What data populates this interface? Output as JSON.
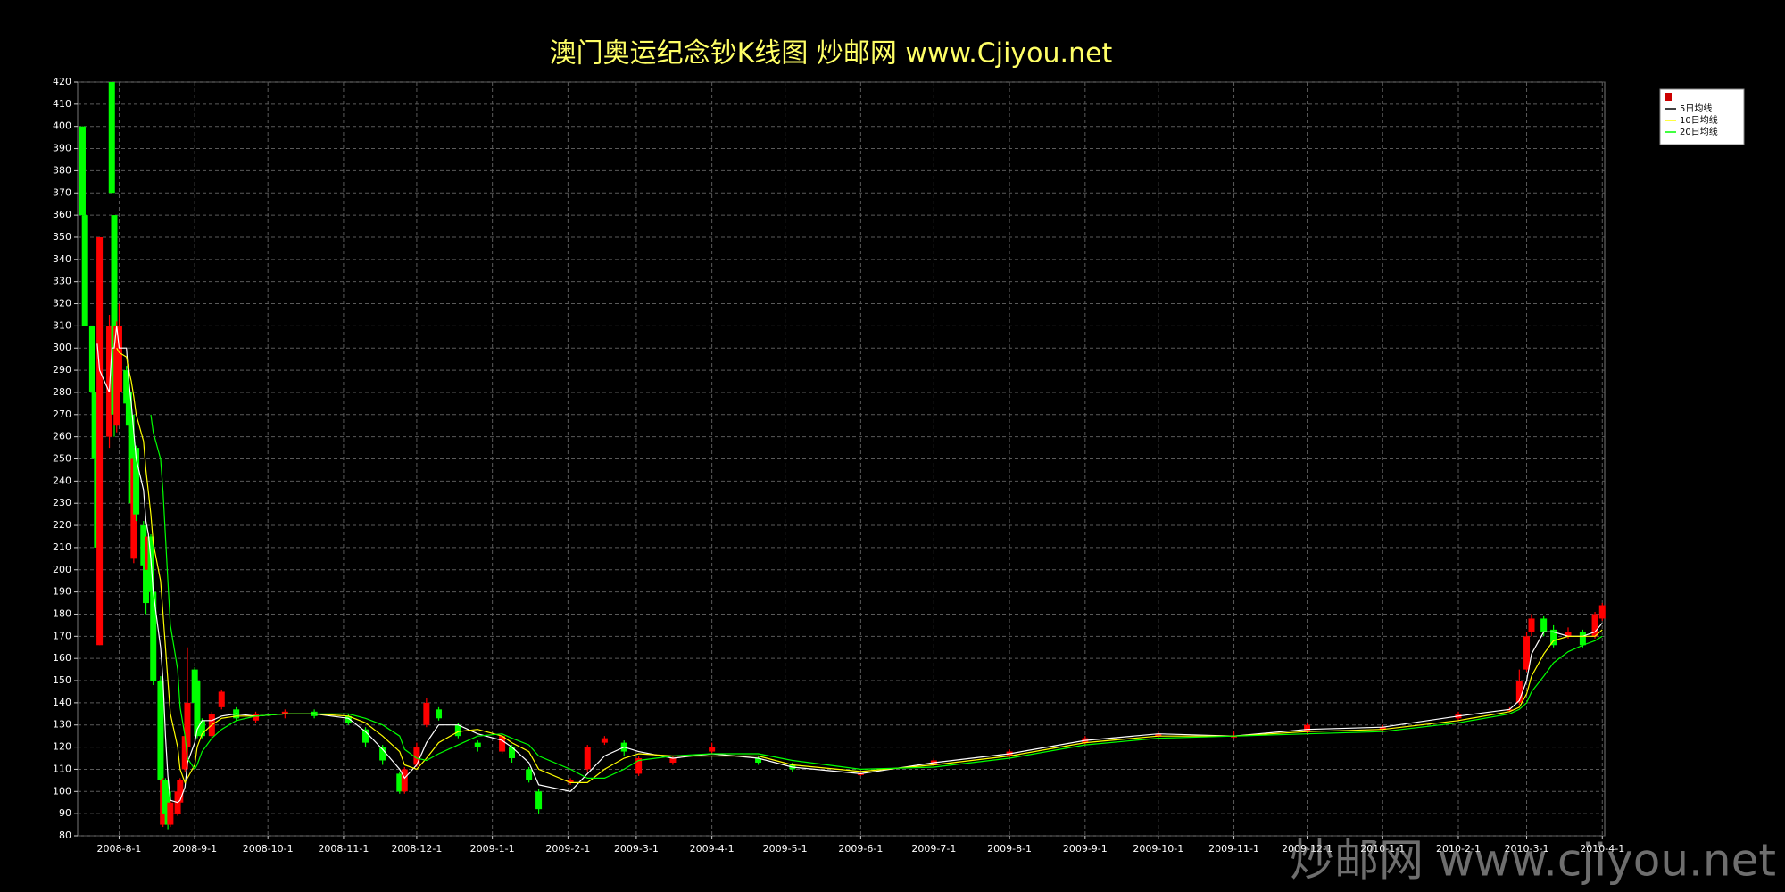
{
  "chart_data": {
    "type": "candlestick",
    "title": "澳门奥运纪念钞K线图  炒邮网 www.Cjiyou.net",
    "watermark": "炒邮网 www.cjiyou.net",
    "x": [
      "2008-7-17",
      "2008-7-18",
      "2008-7-21",
      "2008-7-22",
      "2008-7-23",
      "2008-7-24",
      "2008-7-28",
      "2008-7-29",
      "2008-7-30",
      "2008-7-31",
      "2008-8-1",
      "2008-8-4",
      "2008-8-5",
      "2008-8-6",
      "2008-8-7",
      "2008-8-8",
      "2008-8-11",
      "2008-8-12",
      "2008-8-13",
      "2008-8-14",
      "2008-8-15",
      "2008-8-18",
      "2008-8-19",
      "2008-8-20",
      "2008-8-21",
      "2008-8-22",
      "2008-8-25",
      "2008-8-26",
      "2008-8-28",
      "2008-8-29",
      "2008-9-1",
      "2008-9-2",
      "2008-9-4",
      "2008-9-8",
      "2008-9-12",
      "2008-9-18",
      "2008-9-26",
      "2008-10-8",
      "2008-10-20",
      "2008-11-3",
      "2008-11-10",
      "2008-11-17",
      "2008-11-24",
      "2008-11-26",
      "2008-12-1",
      "2008-12-5",
      "2008-12-10",
      "2008-12-18",
      "2008-12-26",
      "2009-1-5",
      "2009-1-9",
      "2009-1-16",
      "2009-1-20",
      "2009-2-2",
      "2009-2-9",
      "2009-2-16",
      "2009-2-24",
      "2009-3-2",
      "2009-3-16",
      "2009-4-1",
      "2009-4-20",
      "2009-5-4",
      "2009-6-1",
      "2009-7-1",
      "2009-8-1",
      "2009-9-1",
      "2009-10-1",
      "2009-11-1",
      "2009-12-1",
      "2010-1-1",
      "2010-2-1",
      "2010-2-22",
      "2010-2-26",
      "2010-3-1",
      "2010-3-3",
      "2010-3-8",
      "2010-3-12",
      "2010-3-18",
      "2010-3-24",
      "2010-3-29",
      "2010-4-1"
    ],
    "open": [
      400,
      360,
      310,
      280,
      250,
      166,
      260,
      420,
      360,
      265,
      280,
      290,
      280,
      270,
      205,
      255,
      220,
      210,
      200,
      215,
      190,
      150,
      85,
      105,
      100,
      85,
      90,
      95,
      110,
      120,
      155,
      150,
      132,
      125,
      138,
      137,
      132,
      135,
      136,
      134,
      128,
      120,
      108,
      100,
      112,
      130,
      137,
      130,
      122,
      118,
      120,
      110,
      100,
      104,
      110,
      122,
      122,
      108,
      113,
      118,
      115,
      112,
      108,
      112,
      116,
      122,
      125,
      125,
      127,
      128,
      133,
      137,
      140,
      155,
      172,
      178,
      173,
      170,
      172,
      170,
      178
    ],
    "high": [
      400,
      360,
      310,
      285,
      250,
      350,
      315,
      420,
      360,
      312,
      320,
      292,
      282,
      272,
      252,
      256,
      222,
      212,
      217,
      216,
      192,
      152,
      106,
      106,
      101,
      96,
      101,
      106,
      126,
      165,
      156,
      151,
      133,
      136,
      146,
      138,
      136,
      137,
      137,
      135,
      129,
      121,
      109,
      111,
      122,
      142,
      138,
      131,
      123,
      126,
      121,
      111,
      101,
      106,
      121,
      125,
      123,
      116,
      116,
      122,
      116,
      113,
      109,
      115,
      119,
      125,
      127,
      127,
      131,
      130,
      136,
      138,
      155,
      172,
      180,
      179,
      175,
      174,
      173,
      181,
      185
    ],
    "low": [
      360,
      310,
      280,
      250,
      210,
      166,
      255,
      370,
      260,
      262,
      275,
      272,
      262,
      228,
      203,
      222,
      200,
      180,
      198,
      188,
      148,
      104,
      84,
      89,
      83,
      84,
      89,
      94,
      109,
      119,
      139,
      124,
      124,
      124,
      137,
      132,
      131,
      133,
      133,
      130,
      120,
      112,
      99,
      99,
      111,
      129,
      132,
      124,
      118,
      117,
      113,
      104,
      90,
      103,
      109,
      121,
      116,
      107,
      112,
      117,
      112,
      109,
      107,
      111,
      115,
      121,
      124,
      124,
      126,
      127,
      132,
      136,
      139,
      154,
      170,
      170,
      165,
      169,
      165,
      169,
      177
    ],
    "close": [
      360,
      310,
      280,
      250,
      210,
      350,
      310,
      370,
      270,
      310,
      310,
      275,
      265,
      230,
      250,
      225,
      202,
      185,
      215,
      190,
      150,
      105,
      105,
      90,
      85,
      95,
      100,
      105,
      125,
      140,
      140,
      125,
      125,
      135,
      145,
      133,
      135,
      136,
      134,
      131,
      122,
      114,
      100,
      110,
      120,
      140,
      133,
      125,
      120,
      125,
      115,
      105,
      92,
      105,
      120,
      124,
      118,
      115,
      115,
      120,
      113,
      110,
      108,
      114,
      118,
      124,
      126,
      125,
      130,
      129,
      135,
      137,
      150,
      170,
      178,
      172,
      166,
      172,
      166,
      180,
      184
    ],
    "up_color": "#ff0000",
    "down_color": "#00ff00",
    "series": [
      {
        "name": "5日均线",
        "color": "#ffffff",
        "values": [
          null,
          null,
          null,
          null,
          302,
          290,
          280,
          300,
          300,
          310,
          300,
          300,
          285,
          275,
          262,
          250,
          236,
          222,
          216,
          205,
          190,
          165,
          150,
          125,
          107,
          96,
          95,
          96,
          102,
          113,
          122,
          128,
          132,
          132,
          134,
          135,
          134,
          135,
          135,
          133,
          127,
          119,
          110,
          106,
          112,
          122,
          130,
          130,
          126,
          123,
          120,
          113,
          103,
          100,
          108,
          116,
          120,
          118,
          115,
          117,
          115,
          111,
          108,
          113,
          117,
          123,
          126,
          125,
          128,
          129,
          134,
          137,
          141,
          150,
          162,
          172,
          172,
          170,
          170,
          172,
          176
        ]
      },
      {
        "name": "10日均线",
        "color": "#ffff00",
        "values": [
          null,
          null,
          null,
          null,
          null,
          null,
          null,
          null,
          null,
          300,
          298,
          296,
          290,
          285,
          278,
          270,
          258,
          245,
          235,
          225,
          212,
          195,
          180,
          165,
          150,
          135,
          120,
          110,
          104,
          106,
          112,
          120,
          126,
          130,
          133,
          134,
          134,
          135,
          135,
          134,
          131,
          125,
          118,
          112,
          110,
          115,
          122,
          127,
          128,
          125,
          122,
          118,
          110,
          104,
          104,
          110,
          115,
          117,
          116,
          116,
          116,
          112,
          109,
          112,
          116,
          122,
          125,
          125,
          127,
          128,
          132,
          136,
          138,
          144,
          152,
          162,
          168,
          170,
          170,
          170,
          173
        ]
      },
      {
        "name": "20日均线",
        "color": "#00ff00",
        "values": [
          null,
          null,
          null,
          null,
          null,
          null,
          null,
          null,
          null,
          null,
          null,
          null,
          null,
          null,
          null,
          null,
          null,
          null,
          null,
          270,
          262,
          250,
          235,
          215,
          195,
          175,
          155,
          138,
          125,
          115,
          110,
          112,
          118,
          124,
          128,
          132,
          134,
          135,
          135,
          135,
          133,
          130,
          125,
          119,
          115,
          114,
          117,
          121,
          125,
          126,
          124,
          121,
          116,
          110,
          106,
          106,
          110,
          114,
          116,
          117,
          117,
          114,
          110,
          111,
          115,
          121,
          124,
          125,
          126,
          127,
          131,
          135,
          137,
          140,
          145,
          152,
          158,
          163,
          166,
          168,
          170
        ]
      }
    ],
    "xlim": [
      "2008-7-15",
      "2010-4-2"
    ],
    "xticks": [
      "2008-8-1",
      "2008-9-1",
      "2008-10-1",
      "2008-11-1",
      "2008-12-1",
      "2009-1-1",
      "2009-2-1",
      "2009-3-1",
      "2009-4-1",
      "2009-5-1",
      "2009-6-1",
      "2009-7-1",
      "2009-8-1",
      "2009-9-1",
      "2009-10-1",
      "2009-11-1",
      "2009-12-1",
      "2010-1-1",
      "2010-2-1",
      "2010-3-1",
      "2010-4-1"
    ],
    "ylim": [
      80,
      420
    ],
    "yticks": [
      80,
      90,
      100,
      110,
      120,
      130,
      140,
      150,
      160,
      170,
      180,
      190,
      200,
      210,
      220,
      230,
      240,
      250,
      260,
      270,
      280,
      290,
      300,
      310,
      320,
      330,
      340,
      350,
      360,
      370,
      380,
      390,
      400,
      410,
      420
    ],
    "grid": true,
    "legend": "top-right"
  }
}
